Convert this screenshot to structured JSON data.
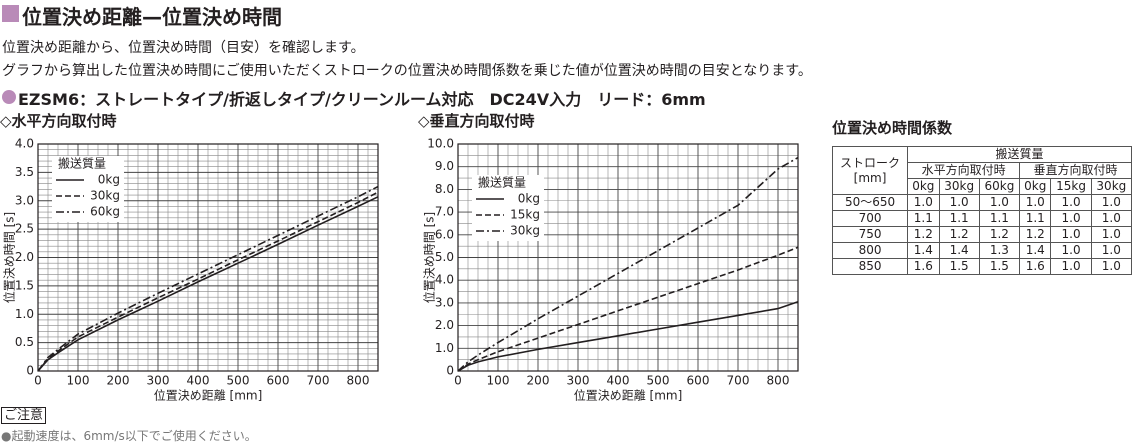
{
  "header": {
    "title": "位置決め距離—位置決め時間"
  },
  "description": [
    "位置決め距離から、位置決め時間（目安）を確認します。",
    "グラフから算出した位置決め時間にご使用いただくストロークの位置決め時間係数を乗じた値が位置決め時間の目安となります。"
  ],
  "model": {
    "name": "EZSM6",
    "spec": "：ストレートタイプ/折返しタイプ/クリーンルーム対応　DC24V入力　リード：6mm"
  },
  "chart_data": [
    {
      "type": "line",
      "title": "◇水平方向取付時",
      "x_label": "位置決め距離 [mm]",
      "y_label": "位置決め時間 [s]",
      "legend_title": "搬送質量",
      "legend": "upper left",
      "grid": true,
      "x": [
        0,
        25,
        50,
        100,
        200,
        300,
        400,
        500,
        600,
        700,
        800,
        850
      ],
      "series": [
        {
          "name": "0kg",
          "color": "#231f20",
          "line_style": "solid",
          "values": [
            0,
            0.2,
            0.32,
            0.55,
            0.9,
            1.23,
            1.57,
            1.9,
            2.23,
            2.57,
            2.9,
            3.07
          ]
        },
        {
          "name": "30kg",
          "color": "#231f20",
          "line_style": "dashed",
          "values": [
            0,
            0.22,
            0.35,
            0.6,
            0.95,
            1.29,
            1.62,
            1.96,
            2.29,
            2.63,
            2.97,
            3.15
          ]
        },
        {
          "name": "60kg",
          "color": "#231f20",
          "line_style": "dashdot",
          "values": [
            0,
            0.24,
            0.38,
            0.65,
            1.02,
            1.37,
            1.71,
            2.05,
            2.39,
            2.73,
            3.07,
            3.25
          ]
        }
      ],
      "xlim": [
        0,
        850
      ],
      "ylim": [
        0,
        4
      ],
      "xticks": [
        0,
        100,
        200,
        300,
        400,
        500,
        600,
        700,
        800
      ],
      "yticks": [
        0,
        0.5,
        {
          "value": 1,
          "label": "1.0"
        },
        1.5,
        {
          "value": 2,
          "label": "2.0"
        },
        2.5,
        {
          "value": 3,
          "label": "3.0"
        },
        3.5,
        {
          "value": 4,
          "label": "4.0"
        }
      ]
    },
    {
      "type": "line",
      "title": "◇垂直方向取付時",
      "x_label": "位置決め距離 [mm]",
      "y_label": "位置決め時間 [s]",
      "legend_title": "搬送質量",
      "legend": "upper left",
      "grid": true,
      "x": [
        0,
        25,
        50,
        100,
        200,
        300,
        400,
        500,
        600,
        700,
        800,
        850
      ],
      "series": [
        {
          "name": "0kg",
          "color": "#231f20",
          "line_style": "solid",
          "values": [
            0,
            0.25,
            0.4,
            0.62,
            0.95,
            1.25,
            1.55,
            1.85,
            2.15,
            2.45,
            2.75,
            3.05
          ]
        },
        {
          "name": "15kg",
          "color": "#231f20",
          "line_style": "dashed",
          "values": [
            0,
            0.3,
            0.5,
            0.85,
            1.45,
            2.05,
            2.65,
            3.25,
            3.85,
            4.45,
            5.1,
            5.45
          ]
        },
        {
          "name": "30kg",
          "color": "#231f20",
          "line_style": "dashdot",
          "values": [
            0,
            0.4,
            0.7,
            1.25,
            2.3,
            3.3,
            4.3,
            5.3,
            6.3,
            7.3,
            8.9,
            9.4
          ]
        }
      ],
      "xlim": [
        0,
        850
      ],
      "ylim": [
        0,
        10
      ],
      "xticks": [
        0,
        100,
        200,
        300,
        400,
        500,
        600,
        700,
        800
      ],
      "yticks": [
        0,
        {
          "value": 1,
          "label": "1.0"
        },
        {
          "value": 2,
          "label": "2.0"
        },
        {
          "value": 3,
          "label": "3.0"
        },
        {
          "value": 4,
          "label": "4.0"
        },
        {
          "value": 5,
          "label": "5.0"
        },
        {
          "value": 6,
          "label": "6.0"
        },
        {
          "value": 7,
          "label": "7.0"
        },
        {
          "value": 8,
          "label": "8.0"
        },
        {
          "value": 9,
          "label": "9.0"
        },
        {
          "value": 10,
          "label": "10.0"
        }
      ]
    }
  ],
  "table": {
    "title": "位置決め時間係数",
    "stub_header": [
      "ストローク",
      "[mm]"
    ],
    "group_header": "搬送質量",
    "subgroups": [
      "水平方向取付時",
      "垂直方向取付時"
    ],
    "columns": [
      "0kg",
      "30kg",
      "60kg",
      "0kg",
      "15kg",
      "30kg"
    ],
    "rows": [
      [
        "50〜650",
        "1.0",
        "1.0",
        "1.0",
        "1.0",
        "1.0",
        "1.0"
      ],
      [
        "700",
        "1.1",
        "1.1",
        "1.1",
        "1.1",
        "1.0",
        "1.0"
      ],
      [
        "750",
        "1.2",
        "1.2",
        "1.2",
        "1.2",
        "1.0",
        "1.0"
      ],
      [
        "800",
        "1.4",
        "1.4",
        "1.3",
        "1.4",
        "1.0",
        "1.0"
      ],
      [
        "850",
        "1.6",
        "1.5",
        "1.5",
        "1.6",
        "1.0",
        "1.0"
      ]
    ]
  },
  "note": {
    "label": "ご注意",
    "text": "●起動速度は、6mm/s以下でご使用ください。"
  }
}
